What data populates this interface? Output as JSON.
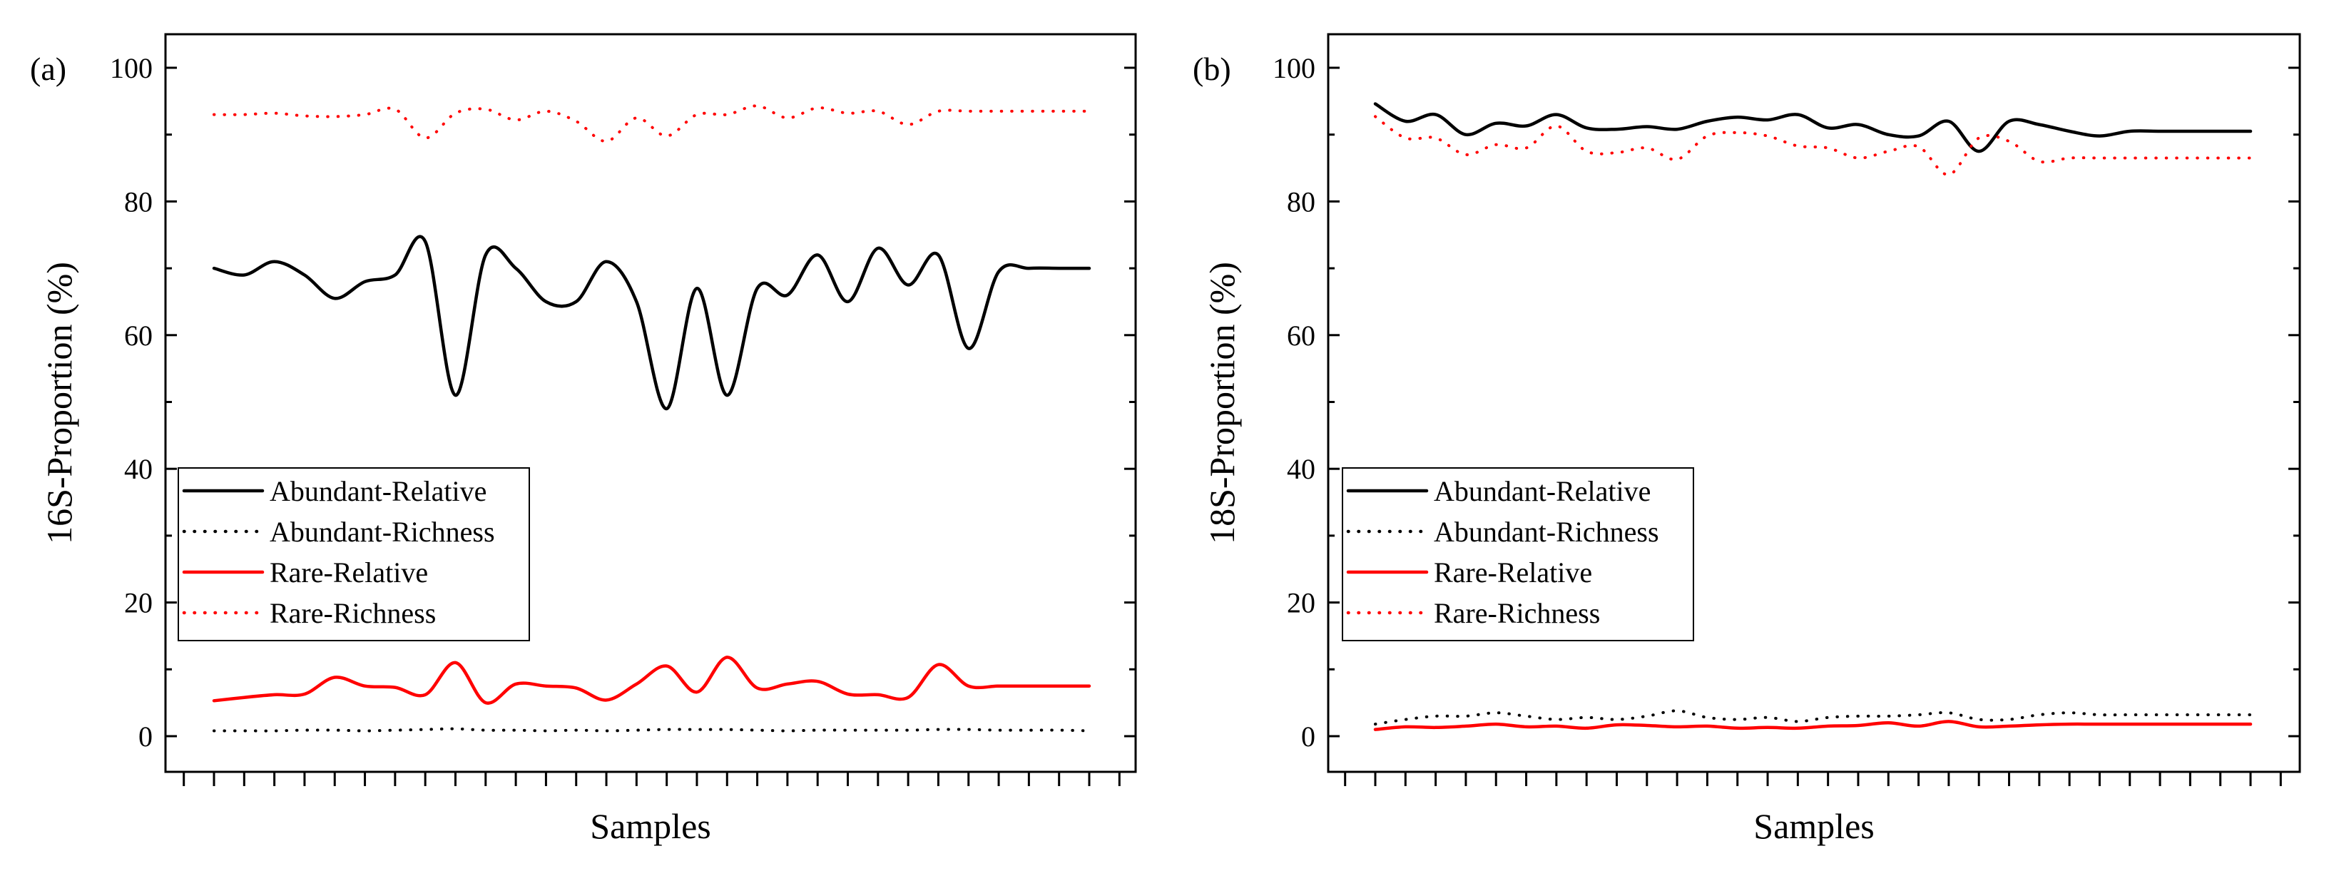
{
  "chart_data": [
    {
      "type": "line",
      "panel_label": "(a)",
      "title": "",
      "xlabel": "Samples",
      "ylabel": "16S-Proportion (%)",
      "ylim": [
        0,
        100
      ],
      "yticks": [
        "0",
        "20",
        "40",
        "60",
        "80",
        "100"
      ],
      "x_count": 30,
      "grid": false,
      "legend_position": "lower-left",
      "series": [
        {
          "name": "Abundant-Relative",
          "color": "#000000",
          "style": "solid",
          "values": [
            70,
            69,
            71,
            69,
            65.5,
            68,
            69,
            74,
            51,
            72,
            70,
            65,
            65,
            71,
            65,
            49,
            67,
            51,
            67,
            66,
            72,
            65,
            73,
            67.5,
            72,
            58,
            69.5,
            70,
            70,
            70
          ]
        },
        {
          "name": "Abundant-Richness",
          "color": "#000000",
          "style": "dotted",
          "values": [
            0.8,
            0.8,
            0.8,
            0.9,
            0.9,
            0.8,
            0.9,
            1.0,
            1.1,
            0.9,
            0.9,
            0.8,
            0.9,
            0.8,
            0.9,
            1.0,
            1.0,
            1.0,
            0.9,
            0.8,
            0.9,
            0.9,
            0.9,
            0.9,
            1.0,
            1.0,
            0.9,
            0.9,
            0.9,
            0.8
          ]
        },
        {
          "name": "Rare-Relative",
          "color": "#ff0000",
          "style": "solid",
          "values": [
            5.3,
            5.8,
            6.2,
            6.3,
            8.8,
            7.5,
            7.3,
            6.2,
            11,
            5,
            7.8,
            7.5,
            7.2,
            5.4,
            7.8,
            10.5,
            6.6,
            11.8,
            7.2,
            7.8,
            8.2,
            6.3,
            6.2,
            5.8,
            10.7,
            7.5,
            7.5,
            7.5,
            7.5,
            7.5
          ]
        },
        {
          "name": "Rare-Richness",
          "color": "#ff0000",
          "style": "dotted",
          "values": [
            93,
            93,
            93.2,
            92.8,
            92.7,
            93,
            93.8,
            89.5,
            93.2,
            93.8,
            92.2,
            93.5,
            92,
            89,
            92.5,
            89.8,
            93,
            93,
            94.3,
            92.5,
            94,
            93.2,
            93.5,
            91.5,
            93.5,
            93.5,
            93.5,
            93.5,
            93.5,
            93.5
          ]
        }
      ]
    },
    {
      "type": "line",
      "panel_label": "(b)",
      "title": "",
      "xlabel": "Samples",
      "ylabel": "18S-Proportion (%)",
      "ylim": [
        0,
        100
      ],
      "yticks": [
        "0",
        "20",
        "40",
        "60",
        "80",
        "100"
      ],
      "x_count": 30,
      "grid": false,
      "legend_position": "lower-left",
      "series": [
        {
          "name": "Abundant-Relative",
          "color": "#000000",
          "style": "solid",
          "values": [
            94.6,
            92,
            93,
            90,
            91.7,
            91.3,
            93,
            91,
            90.8,
            91.2,
            90.8,
            92,
            92.6,
            92.2,
            93,
            91,
            91.5,
            90,
            89.8,
            92,
            87.5,
            92,
            91.5,
            90.5,
            89.8,
            90.5,
            90.5,
            90.5,
            90.5,
            90.5
          ]
        },
        {
          "name": "Abundant-Richness",
          "color": "#000000",
          "style": "dotted",
          "values": [
            1.8,
            2.5,
            3,
            3,
            3.5,
            3,
            2.5,
            2.8,
            2.5,
            3,
            3.8,
            2.8,
            2.5,
            2.8,
            2.2,
            2.8,
            3,
            3,
            3.2,
            3.5,
            2.5,
            2.5,
            3.2,
            3.5,
            3.2,
            3.2,
            3.2,
            3.2,
            3.2,
            3.2
          ]
        },
        {
          "name": "Rare-Relative",
          "color": "#ff0000",
          "style": "solid",
          "values": [
            1,
            1.4,
            1.3,
            1.5,
            1.8,
            1.4,
            1.5,
            1.2,
            1.7,
            1.6,
            1.4,
            1.5,
            1.2,
            1.3,
            1.2,
            1.5,
            1.6,
            2,
            1.5,
            2.2,
            1.4,
            1.5,
            1.7,
            1.8,
            1.8,
            1.8,
            1.8,
            1.8,
            1.8,
            1.8
          ]
        },
        {
          "name": "Rare-Richness",
          "color": "#ff0000",
          "style": "dotted",
          "values": [
            92.7,
            89.5,
            89.5,
            87,
            88.5,
            88,
            91.3,
            87.5,
            87.3,
            88,
            86.3,
            89.8,
            90.3,
            89.8,
            88.3,
            88,
            86.5,
            87.5,
            88.2,
            84,
            89.5,
            89,
            86,
            86.5,
            86.5,
            86.5,
            86.5,
            86.5,
            86.5,
            86.5
          ]
        }
      ]
    }
  ]
}
